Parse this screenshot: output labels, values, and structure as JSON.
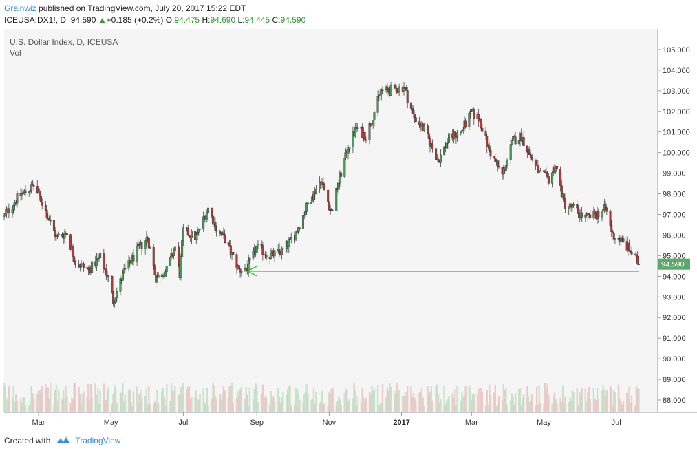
{
  "header": {
    "author": "Grainwiz",
    "published": "published on TradingView.com, July 20, 2017 15:22 EDT"
  },
  "quote": {
    "symbol": "ICEUSA:DX1!, D",
    "last": "94.590",
    "change": "+0.185 (+0.2%)",
    "open_label": "O:",
    "open": "94.475",
    "high_label": "H:",
    "high": "94.690",
    "low_label": "L:",
    "low": "94.445",
    "close_label": "C:",
    "close": "94.590"
  },
  "footer": {
    "created_with": "Created with",
    "brand": "TradingView"
  },
  "colors": {
    "up": "#4a9a5a",
    "down": "#b03a3a",
    "support_line": "#2ec02e",
    "price_tag": "#5aa86a",
    "plot_bg": "#f5f5f5"
  },
  "chart_data": {
    "type": "candlestick",
    "title": "U.S. Dollar Index, D, ICEUSA",
    "volume_label": "Vol",
    "y_ticks": [
      "105.000",
      "104.000",
      "103.000",
      "102.000",
      "101.000",
      "100.000",
      "99.000",
      "98.000",
      "97.000",
      "96.000",
      "95.000",
      "94.000",
      "93.000",
      "92.000",
      "91.000",
      "90.000",
      "89.000",
      "88.000"
    ],
    "ylim": [
      87.4,
      106.0
    ],
    "x_ticks": [
      {
        "label": "Mar",
        "date": "2016-03-01",
        "bold": false
      },
      {
        "label": "May",
        "date": "2016-05-01",
        "bold": false
      },
      {
        "label": "Jul",
        "date": "2016-07-01",
        "bold": false
      },
      {
        "label": "Sep",
        "date": "2016-09-01",
        "bold": false
      },
      {
        "label": "Nov",
        "date": "2016-11-01",
        "bold": false
      },
      {
        "label": "2017",
        "date": "2017-01-01",
        "bold": true
      },
      {
        "label": "Mar",
        "date": "2017-03-01",
        "bold": false
      },
      {
        "label": "May",
        "date": "2017-05-01",
        "bold": false
      },
      {
        "label": "Jul",
        "date": "2017-07-01",
        "bold": false
      }
    ],
    "xlim": [
      "2016-02-01",
      "2017-08-05"
    ],
    "last_price_label": "94.590",
    "support_line": {
      "from_date": "2016-08-24",
      "to_date": "2017-07-20",
      "price": 94.25
    },
    "price_path": [
      [
        "2016-02-01",
        96.9
      ],
      [
        "2016-02-12",
        97.8
      ],
      [
        "2016-02-26",
        98.4
      ],
      [
        "2016-03-04",
        97.6
      ],
      [
        "2016-03-16",
        95.9
      ],
      [
        "2016-03-25",
        96.1
      ],
      [
        "2016-04-01",
        94.7
      ],
      [
        "2016-04-12",
        94.3
      ],
      [
        "2016-04-22",
        94.9
      ],
      [
        "2016-04-29",
        93.9
      ],
      [
        "2016-05-03",
        92.8
      ],
      [
        "2016-05-12",
        94.2
      ],
      [
        "2016-05-24",
        95.3
      ],
      [
        "2016-06-01",
        95.9
      ],
      [
        "2016-06-08",
        93.9
      ],
      [
        "2016-06-17",
        94.3
      ],
      [
        "2016-06-24",
        95.4
      ],
      [
        "2016-06-28",
        94.1
      ],
      [
        "2016-07-01",
        96.2
      ],
      [
        "2016-07-12",
        95.9
      ],
      [
        "2016-07-22",
        97.3
      ],
      [
        "2016-07-29",
        96.3
      ],
      [
        "2016-08-05",
        95.8
      ],
      [
        "2016-08-17",
        94.3
      ],
      [
        "2016-08-24",
        94.4
      ],
      [
        "2016-09-01",
        95.4
      ],
      [
        "2016-09-12",
        95.0
      ],
      [
        "2016-09-22",
        95.2
      ],
      [
        "2016-10-03",
        96.0
      ],
      [
        "2016-10-14",
        97.5
      ],
      [
        "2016-10-25",
        98.7
      ],
      [
        "2016-11-03",
        97.1
      ],
      [
        "2016-11-10",
        98.8
      ],
      [
        "2016-11-17",
        100.3
      ],
      [
        "2016-11-24",
        101.2
      ],
      [
        "2016-12-02",
        100.8
      ],
      [
        "2016-12-15",
        103.0
      ],
      [
        "2016-12-22",
        103.0
      ],
      [
        "2017-01-03",
        103.2
      ],
      [
        "2017-01-11",
        101.8
      ],
      [
        "2017-01-20",
        101.1
      ],
      [
        "2017-02-01",
        99.6
      ],
      [
        "2017-02-10",
        100.7
      ],
      [
        "2017-02-20",
        101.0
      ],
      [
        "2017-03-01",
        101.9
      ],
      [
        "2017-03-08",
        101.6
      ],
      [
        "2017-03-15",
        100.2
      ],
      [
        "2017-03-27",
        98.9
      ],
      [
        "2017-04-05",
        100.6
      ],
      [
        "2017-04-12",
        100.8
      ],
      [
        "2017-04-20",
        99.8
      ],
      [
        "2017-04-27",
        99.0
      ],
      [
        "2017-05-05",
        98.7
      ],
      [
        "2017-05-11",
        99.4
      ],
      [
        "2017-05-18",
        97.5
      ],
      [
        "2017-05-26",
        97.3
      ],
      [
        "2017-06-05",
        96.8
      ],
      [
        "2017-06-14",
        97.0
      ],
      [
        "2017-06-22",
        97.3
      ],
      [
        "2017-06-28",
        96.0
      ],
      [
        "2017-07-06",
        95.7
      ],
      [
        "2017-07-12",
        95.3
      ],
      [
        "2017-07-20",
        94.59
      ]
    ]
  }
}
